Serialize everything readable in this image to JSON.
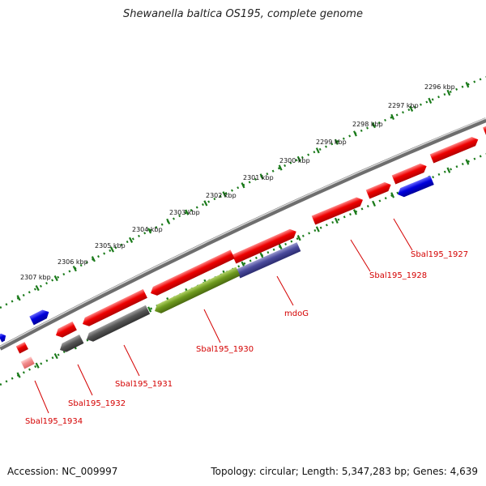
{
  "title": "Shewanella baltica OS195, complete genome",
  "footer": {
    "accession": "Accession: NC_009997",
    "summary": "Topology: circular; Length: 5,347,283 bp; Genes: 4,639"
  },
  "scale_labels": [
    "2296 kbp",
    "2297 kbp",
    "2298 kbp",
    "2299 kbp",
    "2300 kbp",
    "2301 kbp",
    "2302 kbp",
    "2303 kbp",
    "2304 kbp",
    "2305 kbp",
    "2306 kbp",
    "2307 kbp"
  ],
  "gene_labels": [
    "Sbal195_1927",
    "Sbal195_1928",
    "mdoG",
    "Sbal195_1930",
    "Sbal195_1931",
    "Sbal195_1932",
    "Sbal195_1934"
  ],
  "colors": {
    "cds": "#ee0000",
    "cds_light": "#f28c8c",
    "trna_blue": "#0000dd",
    "navy": "#4a4a9c",
    "olive": "#6e9a1e",
    "gray_gene": "#555555",
    "backbone": "#8c8c8c",
    "tick": "#1a7a1a",
    "label": "#d40000"
  }
}
